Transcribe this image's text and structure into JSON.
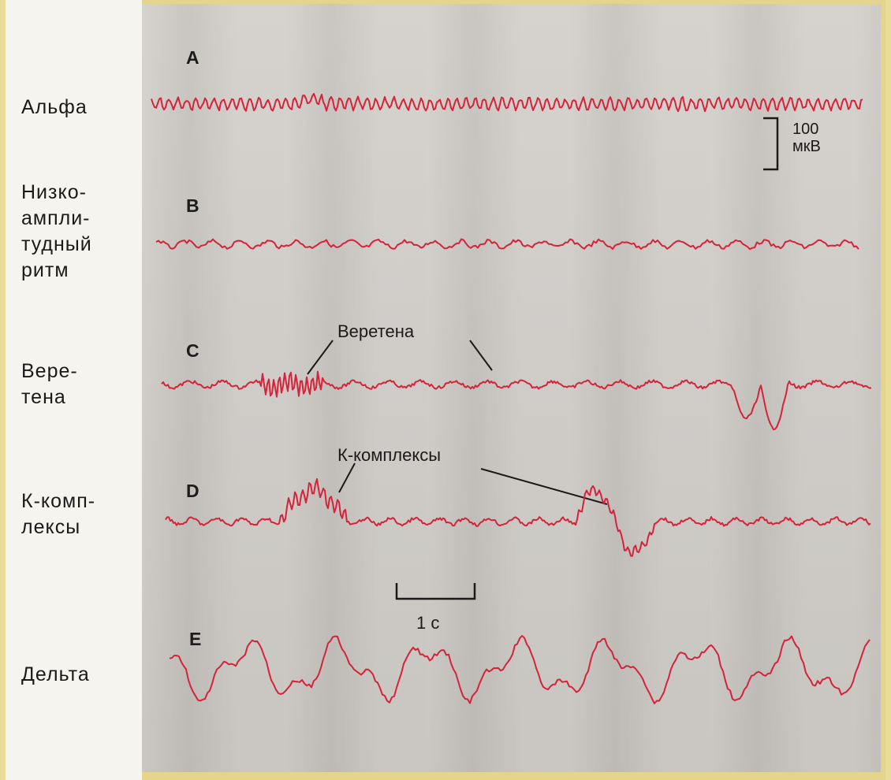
{
  "colors": {
    "trace": "#d4233a",
    "ink": "#1a1a1a",
    "paper": "#cfcbc6",
    "frame": "#e3d68c"
  },
  "rows": [
    {
      "letter": "A",
      "label": "Альфа"
    },
    {
      "letter": "B",
      "label": "Низко-\nампли-\nтудный\nритм"
    },
    {
      "letter": "C",
      "label": "Вере-\nтена"
    },
    {
      "letter": "D",
      "label": "К-комп-\nлексы"
    },
    {
      "letter": "E",
      "label": "Дельта"
    }
  ],
  "annotations": {
    "amplitude_scale": "100\nмкВ",
    "spindles": "Веретена",
    "k_complexes": "К-комплексы",
    "time_scale": "1 с"
  }
}
